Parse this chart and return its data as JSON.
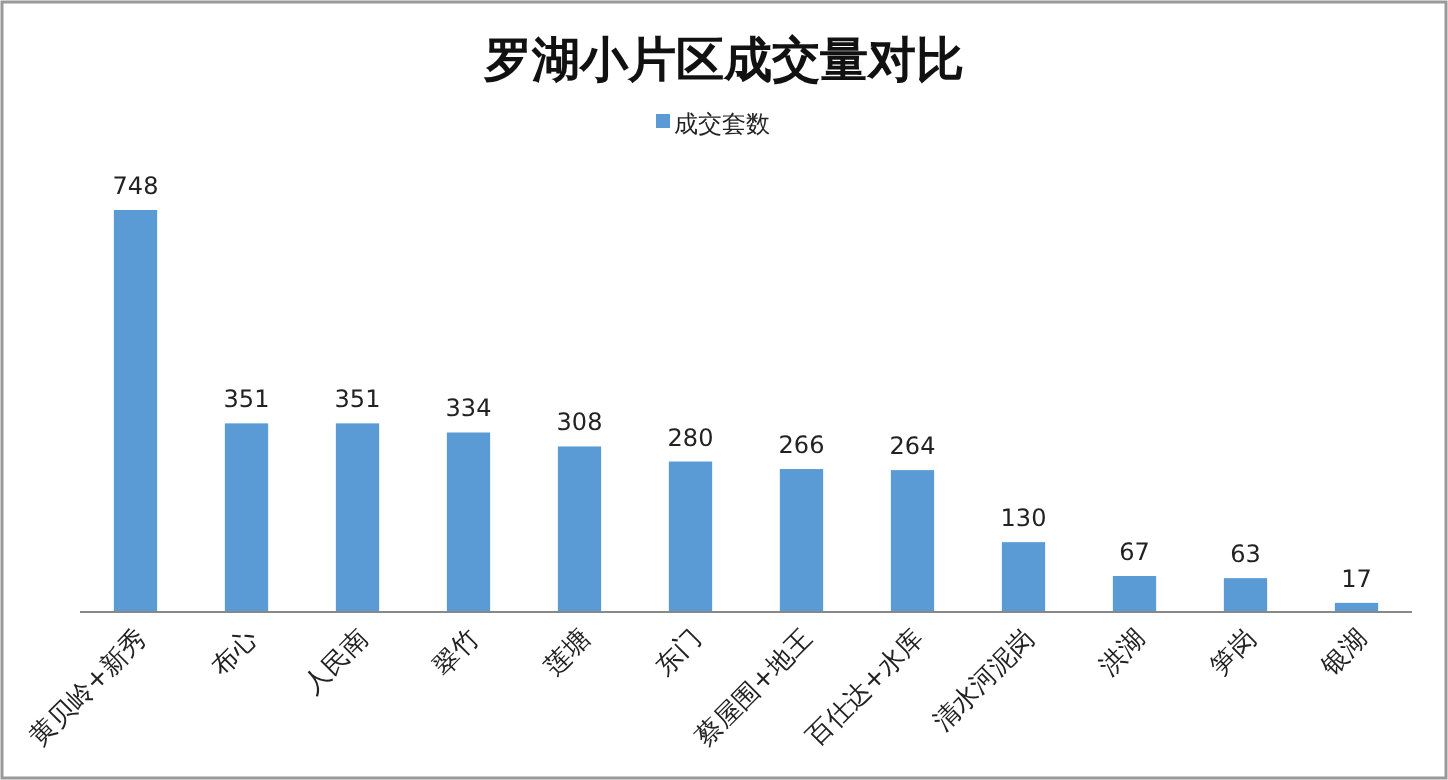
{
  "chart_data": {
    "type": "bar",
    "title": "罗湖小片区成交量对比",
    "categories": [
      "黄贝岭+新秀",
      "布心",
      "人民南",
      "翠竹",
      "莲塘",
      "东门",
      "蔡屋围+地王",
      "百仕达+水库",
      "清水河泥岗",
      "洪湖",
      "笋岗",
      "银湖"
    ],
    "series": [
      {
        "name": "成交套数",
        "color": "#5b9bd5",
        "values": [
          748,
          351,
          351,
          334,
          308,
          280,
          266,
          264,
          130,
          67,
          63,
          17
        ]
      }
    ],
    "data_labels": true,
    "legend": "top"
  }
}
